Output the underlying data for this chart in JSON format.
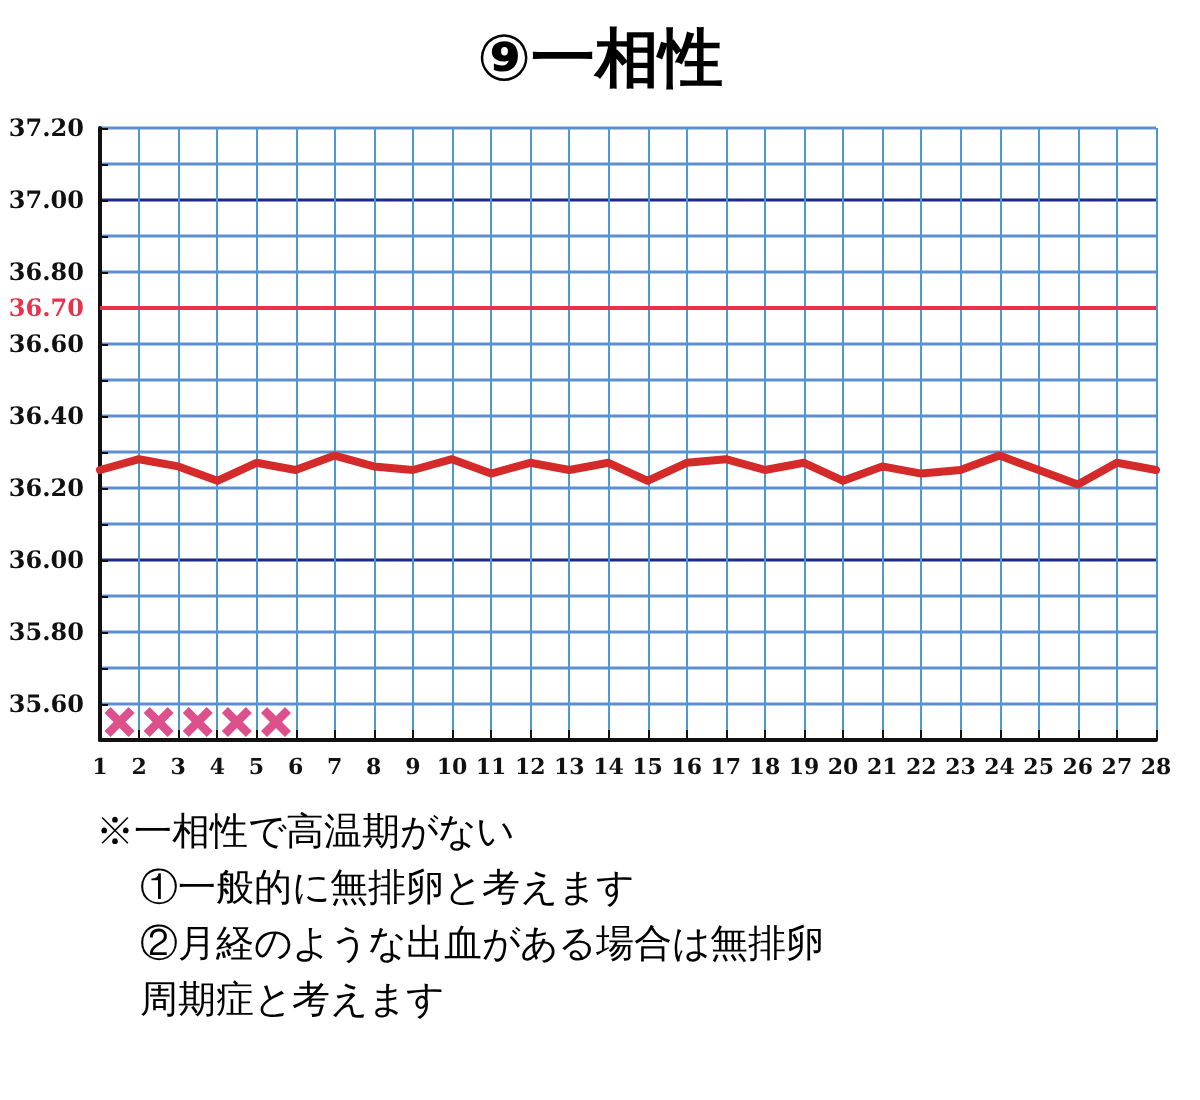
{
  "chart_data": {
    "type": "line",
    "title": "⑨一相性",
    "x": [
      1,
      2,
      3,
      4,
      5,
      6,
      7,
      8,
      9,
      10,
      11,
      12,
      13,
      14,
      15,
      16,
      17,
      18,
      19,
      20,
      21,
      22,
      23,
      24,
      25,
      26,
      27,
      28
    ],
    "series": [
      {
        "color": "#d42a2a",
        "marker": "none",
        "line_style": "solid",
        "values": [
          36.25,
          36.28,
          36.26,
          36.22,
          36.27,
          36.25,
          36.29,
          36.26,
          36.25,
          36.28,
          36.24,
          36.27,
          36.25,
          36.27,
          36.22,
          36.27,
          36.28,
          36.25,
          36.27,
          36.22,
          36.26,
          36.24,
          36.25,
          36.29,
          36.25,
          36.21,
          36.27,
          36.25
        ]
      },
      {
        "type": "scatter",
        "color": "#d6246e",
        "marker": "cross",
        "x": [
          1.5,
          2.5,
          3.5,
          4.5,
          5.5
        ],
        "values": [
          35.55,
          35.55,
          35.55,
          35.55,
          35.55
        ]
      }
    ],
    "xlim": [
      1,
      28
    ],
    "xticks": [
      1,
      2,
      3,
      4,
      5,
      6,
      7,
      8,
      9,
      10,
      11,
      12,
      13,
      14,
      15,
      16,
      17,
      18,
      19,
      20,
      21,
      22,
      23,
      24,
      25,
      26,
      27,
      28
    ],
    "ylim": [
      35.5,
      37.2
    ],
    "yticks": [
      {
        "value": 35.5,
        "label": null
      },
      {
        "value": 35.6,
        "label": "35.60"
      },
      {
        "value": 35.7,
        "label": null
      },
      {
        "value": 35.8,
        "label": "35.80"
      },
      {
        "value": 35.9,
        "label": null
      },
      {
        "value": 36.0,
        "label": "36.00"
      },
      {
        "value": 36.1,
        "label": null
      },
      {
        "value": 36.2,
        "label": "36.20"
      },
      {
        "value": 36.3,
        "label": null
      },
      {
        "value": 36.4,
        "label": "36.40"
      },
      {
        "value": 36.5,
        "label": null
      },
      {
        "value": 36.6,
        "label": "36.60"
      },
      {
        "value": 36.7,
        "label": "36.70"
      },
      {
        "value": 36.8,
        "label": "36.80"
      },
      {
        "value": 36.9,
        "label": null
      },
      {
        "value": 37.0,
        "label": "37.00"
      },
      {
        "value": 37.1,
        "label": null
      },
      {
        "value": 37.2,
        "label": "37.20"
      }
    ],
    "grid": true,
    "ref_lines": [
      {
        "axis": "y",
        "value": 36.7,
        "color": "#e8314a"
      }
    ],
    "annotations": [
      "※一相性で高温期がない",
      "①一般的に無排卵と考えます",
      "②月経のような出血がある場合は無排卵周期症と考えます"
    ]
  }
}
